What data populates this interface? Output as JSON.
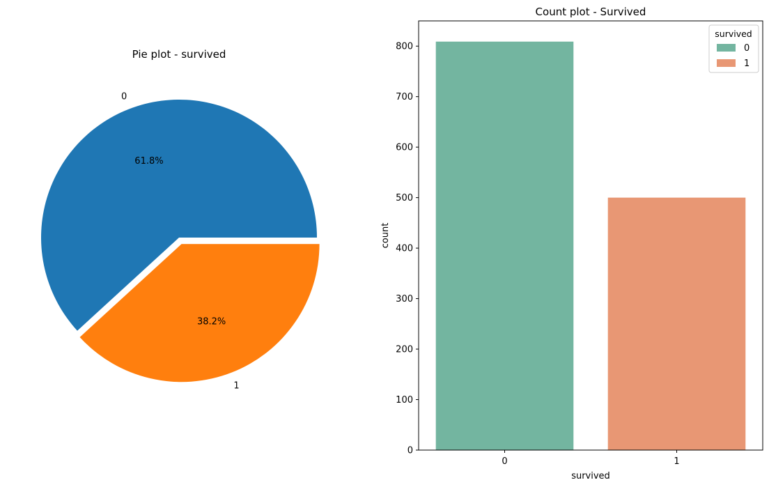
{
  "chart_data": [
    {
      "type": "pie",
      "title": "Pie plot - survived",
      "labels": [
        "0",
        "1"
      ],
      "values": [
        61.8,
        38.2
      ],
      "value_labels": [
        "61.8%",
        "38.2%"
      ],
      "explode": [
        0,
        0.05
      ],
      "colors": [
        "#1f77b4",
        "#ff7f0e"
      ]
    },
    {
      "type": "bar",
      "title": "Count plot - Survived",
      "xlabel": "survived",
      "ylabel": "count",
      "categories": [
        "0",
        "1"
      ],
      "values": [
        809,
        500
      ],
      "ylim": [
        0,
        850
      ],
      "yticks": [
        "0",
        "100",
        "200",
        "300",
        "400",
        "500",
        "600",
        "700",
        "800"
      ],
      "colors": [
        "#73b5a0",
        "#e89774"
      ],
      "legend": {
        "title": "survived",
        "entries": [
          "0",
          "1"
        ],
        "location": "top-right"
      },
      "grid": false
    }
  ]
}
